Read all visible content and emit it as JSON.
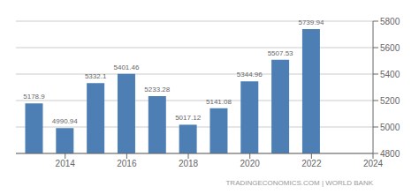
{
  "chart_data": {
    "type": "bar",
    "x": [
      2013,
      2014,
      2015,
      2016,
      2017,
      2018,
      2019,
      2020,
      2021,
      2022
    ],
    "values": [
      5178.9,
      4990.94,
      5332.1,
      5401.46,
      5233.28,
      5017.12,
      5141.08,
      5344.96,
      5507.53,
      5739.94
    ],
    "color": "#4d7fb5",
    "xlim": [
      2012.4,
      2024.0
    ],
    "xticks": [
      2014,
      2016,
      2018,
      2020,
      2022,
      2024
    ],
    "ylim": [
      4800,
      5800
    ],
    "yticks": [
      4800,
      5000,
      5200,
      5400,
      5600,
      5800
    ],
    "grid": true,
    "data_labels": true,
    "annotation": "TRADINGECONOMICS.COM | WORLD BANK"
  }
}
